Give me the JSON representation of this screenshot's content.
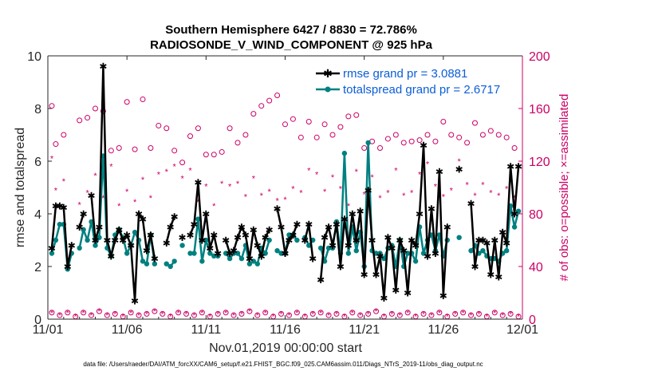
{
  "chart_data": {
    "type": "line",
    "title": "Southern Hemisphere 6427 / 8830 = 72.786%",
    "subtitle": "RADIOSONDE_V_WIND_COMPONENT @ 925 hPa",
    "xlabel": "Nov.01,2019 00:00:00 start",
    "ylabel": "rmse and totalspread",
    "ylabel_right": "# of obs: o=possible; ×=assimilated",
    "footer": "data file: /Users/raeder/DAI/ATM_forcXX/CAM6_setup/f.e21.FHIST_BGC.f09_025.CAM6assim.011/Diags_NTrS_2019-11/obs_diag_output.nc",
    "x_tick_labels": [
      "11/01",
      "11/06",
      "11/11",
      "11/16",
      "11/21",
      "11/26",
      "12/01"
    ],
    "y_ticks": [
      "0",
      "2",
      "4",
      "6",
      "8",
      "10"
    ],
    "y2_ticks": [
      "0",
      "40",
      "80",
      "120",
      "160",
      "200"
    ],
    "ylim": [
      0,
      10
    ],
    "y2lim": [
      0,
      200
    ],
    "xlim_days": [
      0,
      30
    ],
    "legend_position": "top-right",
    "colors": {
      "rmse": "#000000",
      "spread": "#008080",
      "obs": "#cc0066"
    },
    "series": [
      {
        "name": "rmse grand pr = 3.0881",
        "x": [
          0.25,
          0.5,
          0.75,
          1.0,
          1.25,
          1.5,
          1.75,
          2.0,
          2.25,
          2.5,
          2.75,
          3.0,
          3.25,
          3.5,
          3.75,
          4.0,
          4.25,
          4.5,
          4.75,
          5.0,
          5.25,
          5.5,
          5.75,
          6.0,
          6.25,
          6.5,
          6.75,
          7.0,
          7.25,
          7.5,
          7.75,
          8.0,
          8.25,
          8.5,
          8.75,
          9.0,
          9.25,
          9.5,
          9.75,
          10.0,
          10.25,
          10.5,
          10.75,
          11.0,
          11.25,
          11.5,
          11.75,
          12.0,
          12.25,
          12.5,
          12.75,
          13.0,
          13.25,
          13.5,
          13.75,
          14.0,
          14.25,
          14.5,
          14.75,
          15.0,
          15.25,
          15.5,
          15.75,
          16.0,
          16.25,
          16.5,
          16.75,
          17.0,
          17.25,
          17.5,
          17.75,
          18.0,
          18.25,
          18.5,
          18.75,
          19.0,
          19.25,
          19.5,
          19.75,
          20.0,
          20.25,
          20.5,
          20.75,
          21.0,
          21.25,
          21.5,
          21.75,
          22.0,
          22.25,
          22.5,
          22.75,
          23.0,
          23.25,
          23.5,
          23.75,
          24.0,
          24.25,
          24.5,
          24.75,
          25.0,
          25.25,
          25.5,
          25.75,
          26.0,
          26.25,
          26.5,
          26.75,
          27.0,
          27.25,
          27.5,
          27.75,
          28.0,
          28.25,
          28.5,
          28.75,
          29.0,
          29.25,
          29.5,
          29.75
        ],
        "values": [
          2.7,
          4.3,
          4.3,
          4.25,
          2.0,
          2.8,
          null,
          3.5,
          4.0,
          null,
          4.7,
          3.0,
          3.5,
          9.6,
          3.0,
          2.4,
          3.0,
          3.4,
          3.0,
          3.2,
          2.8,
          0.7,
          4.0,
          3.8,
          2.6,
          3.2,
          2.3,
          null,
          null,
          2.9,
          3.5,
          3.9,
          null,
          3.1,
          null,
          3.2,
          3.6,
          5.2,
          3.0,
          4.0,
          2.7,
          3.2,
          2.5,
          null,
          3.0,
          2.5,
          2.6,
          3.1,
          3.5,
          3.2,
          2.3,
          3.4,
          2.8,
          2.4,
          3.1,
          3.4,
          null,
          4.2,
          3.5,
          2.5,
          3.0,
          3.2,
          3.6,
          null,
          3.0,
          3.6,
          2.3,
          null,
          1.5,
          3.1,
          3.5,
          2.8,
          3.6,
          2.0,
          3.8,
          2.8,
          4.0,
          3.0,
          4.1,
          1.7,
          4.9,
          3.0,
          1.7,
          2.4,
          0.8,
          3.1,
          2.7,
          1.1,
          3.0,
          2.6,
          1.0,
          3.0,
          2.8,
          4.0,
          6.6,
          2.4,
          4.2,
          2.5,
          5.6,
          0.9,
          3.5,
          null,
          null,
          5.7,
          null,
          null,
          4.4,
          2.0,
          3.0,
          3.0,
          2.9,
          1.7,
          3.0,
          1.6,
          3.3,
          2.9,
          5.8,
          4.0,
          5.8
        ],
        "color": "#000000"
      },
      {
        "name": "totalspread grand pr = 2.6717",
        "x": [
          0.25,
          0.5,
          0.75,
          1.0,
          1.25,
          1.5,
          1.75,
          2.0,
          2.25,
          2.5,
          2.75,
          3.0,
          3.25,
          3.5,
          3.75,
          4.0,
          4.25,
          4.5,
          4.75,
          5.0,
          5.25,
          5.5,
          5.75,
          6.0,
          6.25,
          6.5,
          6.75,
          7.0,
          7.25,
          7.5,
          7.75,
          8.0,
          8.25,
          8.5,
          8.75,
          9.0,
          9.25,
          9.5,
          9.75,
          10.0,
          10.25,
          10.5,
          10.75,
          11.0,
          11.25,
          11.5,
          11.75,
          12.0,
          12.25,
          12.5,
          12.75,
          13.0,
          13.25,
          13.5,
          13.75,
          14.0,
          14.25,
          14.5,
          14.75,
          15.0,
          15.25,
          15.5,
          15.75,
          16.0,
          16.25,
          16.5,
          16.75,
          17.0,
          17.25,
          17.5,
          17.75,
          18.0,
          18.25,
          18.5,
          18.75,
          19.0,
          19.25,
          19.5,
          19.75,
          20.0,
          20.25,
          20.5,
          20.75,
          21.0,
          21.25,
          21.5,
          21.75,
          22.0,
          22.25,
          22.5,
          22.75,
          23.0,
          23.25,
          23.5,
          23.75,
          24.0,
          24.25,
          24.5,
          24.75,
          25.0,
          25.25,
          25.5,
          25.75,
          26.0,
          26.25,
          26.5,
          26.75,
          27.0,
          27.25,
          27.5,
          27.75,
          28.0,
          28.25,
          28.5,
          28.75,
          29.0,
          29.25,
          29.5,
          29.75
        ],
        "values": [
          2.5,
          3.0,
          3.6,
          3.6,
          1.9,
          2.5,
          null,
          2.7,
          3.4,
          3.0,
          3.7,
          2.8,
          3.1,
          6.2,
          2.7,
          2.4,
          3.2,
          3.4,
          3.1,
          2.5,
          2.8,
          3.3,
          3.0,
          2.2,
          2.1,
          3.2,
          2.1,
          null,
          null,
          2.1,
          2.0,
          2.2,
          null,
          2.8,
          null,
          2.5,
          2.5,
          3.8,
          2.2,
          3.0,
          2.5,
          2.4,
          2.4,
          null,
          2.5,
          2.3,
          2.5,
          2.5,
          2.3,
          2.8,
          2.1,
          2.2,
          2.1,
          2.7,
          2.5,
          3.0,
          null,
          2.6,
          2.5,
          2.5,
          3.2,
          3.2,
          3.0,
          null,
          3.1,
          2.8,
          3.0,
          null,
          2.7,
          2.2,
          2.7,
          2.7,
          3.7,
          2.5,
          6.3,
          2.5,
          3.5,
          2.6,
          3.3,
          2.0,
          6.7,
          2.6,
          2.5,
          2.5,
          2.3,
          2.7,
          2.8,
          2.0,
          3.0,
          2.0,
          2.5,
          2.5,
          2.2,
          3.5,
          2.5,
          3.0,
          3.2,
          2.6,
          3.2,
          2.4,
          3.0,
          null,
          null,
          3.1,
          null,
          null,
          2.6,
          2.8,
          2.5,
          2.6,
          2.4,
          2.3,
          2.3,
          2.2,
          2.5,
          2.6,
          4.3,
          3.5,
          4.1
        ],
        "color": "#008080"
      },
      {
        "name": "obs possible",
        "axis": "right",
        "marker": "o",
        "x": [
          0.25,
          0.5,
          1.0,
          2.0,
          2.5,
          3.0,
          3.5,
          4.0,
          4.5,
          5.0,
          5.5,
          6.0,
          6.5,
          7.0,
          7.5,
          8.0,
          8.5,
          9.0,
          9.5,
          10.0,
          10.5,
          11.0,
          11.5,
          12.0,
          12.5,
          13.0,
          13.5,
          14.0,
          14.5,
          15.0,
          15.5,
          16.0,
          16.5,
          17.0,
          17.5,
          18.0,
          18.5,
          19.0,
          19.5,
          20.0,
          20.5,
          21.0,
          21.5,
          22.0,
          22.5,
          23.0,
          23.5,
          24.0,
          24.5,
          25.0,
          25.5,
          26.0,
          26.5,
          27.0,
          27.5,
          28.0,
          28.5,
          29.0,
          29.5
        ],
        "values": [
          162,
          133,
          140,
          151,
          153,
          160,
          158,
          128,
          130,
          165,
          129,
          167,
          130,
          147,
          145,
          128,
          119,
          139,
          145,
          125,
          125,
          127,
          145,
          134,
          140,
          156,
          162,
          166,
          170,
          148,
          152,
          138,
          150,
          138,
          148,
          140,
          146,
          154,
          155,
          130,
          135,
          130,
          137,
          140,
          134,
          135,
          136,
          140,
          135,
          150,
          140,
          138,
          134,
          149,
          140,
          143,
          140,
          138,
          130
        ],
        "color": "#cc0066"
      },
      {
        "name": "obs assimilated",
        "axis": "right",
        "marker": "*",
        "x": [
          0.25,
          0.5,
          1.0,
          2.0,
          2.5,
          3.0,
          3.5,
          4.0,
          4.5,
          5.0,
          5.5,
          6.0,
          6.5,
          7.0,
          7.5,
          8.0,
          8.5,
          9.0,
          9.5,
          10.0,
          10.5,
          11.0,
          11.5,
          12.0,
          12.5,
          13.0,
          13.5,
          14.0,
          14.5,
          15.0,
          15.5,
          16.0,
          16.5,
          17.0,
          17.5,
          18.0,
          18.5,
          19.0,
          19.5,
          20.0,
          20.5,
          21.0,
          21.5,
          22.0,
          22.5,
          23.0,
          23.5,
          24.0,
          24.5,
          25.0,
          25.5,
          26.0,
          26.5,
          27.0,
          27.5,
          28.0,
          28.5,
          29.0,
          29.5
        ],
        "values": [
          122,
          98,
          105,
          87,
          96,
          109,
          92,
          116,
          86,
          97,
          89,
          106,
          92,
          110,
          112,
          116,
          107,
          113,
          89,
          101,
          86,
          103,
          101,
          103,
          93,
          107,
          94,
          97,
          90,
          91,
          99,
          96,
          113,
          110,
          97,
          108,
          99,
          86,
          112,
          95,
          108,
          92,
          96,
          113,
          94,
          96,
          110,
          118,
          101,
          93,
          98,
          120,
          102,
          94,
          102,
          96,
          94,
          99,
          92
        ],
        "color": "#cc0066"
      },
      {
        "name": "obs bottom possible",
        "axis": "right",
        "marker": "o",
        "x": [
          0.25,
          0.75,
          1.25,
          1.75,
          2.25,
          2.75,
          3.25,
          3.75,
          4.25,
          4.75,
          5.25,
          5.75,
          6.25,
          6.75,
          7.25,
          7.75,
          8.25,
          8.75,
          9.25,
          9.75,
          10.25,
          10.75,
          11.25,
          11.75,
          12.25,
          12.75,
          13.25,
          13.75,
          14.25,
          14.75,
          15.25,
          15.75,
          16.25,
          16.75,
          17.25,
          17.75,
          18.25,
          18.75,
          19.25,
          19.75,
          20.25,
          20.75,
          21.25,
          21.75,
          22.25,
          22.75,
          23.25,
          23.75,
          24.25,
          24.75,
          25.25,
          25.75,
          26.25,
          26.75,
          27.25,
          27.75,
          28.25,
          28.75,
          29.25,
          29.75
        ],
        "values": [
          5,
          3,
          5,
          2,
          5,
          3,
          6,
          3,
          4,
          2,
          5,
          3,
          4,
          6,
          4,
          2,
          5,
          4,
          3,
          5,
          2,
          4,
          5,
          3,
          4,
          6,
          3,
          5,
          2,
          4,
          3,
          5,
          2,
          4,
          5,
          3,
          4,
          2,
          5,
          3,
          4,
          6,
          2,
          4,
          3,
          5,
          2,
          4,
          3,
          5,
          2,
          4,
          5,
          3,
          4,
          2,
          5,
          3,
          4,
          2
        ],
        "color": "#cc0066"
      },
      {
        "name": "obs bottom assimilated",
        "axis": "right",
        "marker": "*",
        "x": [
          0.25,
          0.75,
          1.25,
          1.75,
          2.25,
          2.75,
          3.25,
          3.75,
          4.25,
          4.75,
          5.25,
          5.75,
          6.25,
          6.75,
          7.25,
          7.75,
          8.25,
          8.75,
          9.25,
          9.75,
          10.25,
          10.75,
          11.25,
          11.75,
          12.25,
          12.75,
          13.25,
          13.75,
          14.25,
          14.75,
          15.25,
          15.75,
          16.25,
          16.75,
          17.25,
          17.75,
          18.25,
          18.75,
          19.25,
          19.75,
          20.25,
          20.75,
          21.25,
          21.75,
          22.25,
          22.75,
          23.25,
          23.75,
          24.25,
          24.75,
          25.25,
          25.75,
          26.25,
          26.75,
          27.25,
          27.75,
          28.25,
          28.75,
          29.25,
          29.75
        ],
        "values": [
          5,
          3,
          5,
          2,
          5,
          3,
          6,
          3,
          4,
          2,
          5,
          3,
          4,
          6,
          4,
          2,
          5,
          4,
          3,
          5,
          2,
          4,
          5,
          3,
          4,
          6,
          3,
          5,
          2,
          4,
          3,
          5,
          2,
          4,
          5,
          3,
          4,
          2,
          5,
          3,
          4,
          6,
          2,
          4,
          3,
          5,
          2,
          4,
          3,
          5,
          2,
          4,
          5,
          3,
          4,
          2,
          5,
          3,
          4,
          2
        ],
        "color": "#cc0066"
      }
    ]
  }
}
